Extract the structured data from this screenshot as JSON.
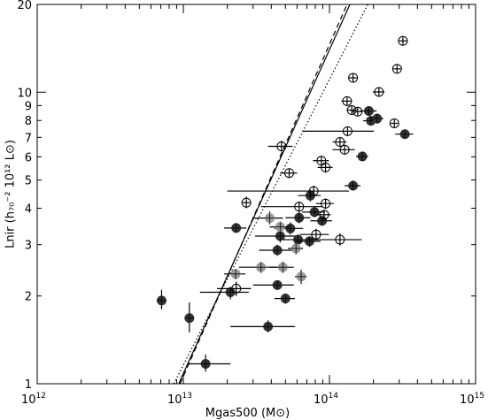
{
  "chart_data": {
    "type": "scatter",
    "x_scale": "log",
    "y_scale": "log",
    "xlim": [
      1000000000000.0,
      1000000000000000.0
    ],
    "ylim": [
      1,
      20
    ],
    "xlabel": "Mgas500 (M⊙)",
    "ylabel": "Lnir (h₇₀⁻² 10¹² L⊙)",
    "x_tick_labels": [
      {
        "value": 1000000000000.0,
        "base": "10",
        "exp": "12"
      },
      {
        "value": 10000000000000.0,
        "base": "10",
        "exp": "13"
      },
      {
        "value": 100000000000000.0,
        "base": "10",
        "exp": "14"
      },
      {
        "value": 1000000000000000.0,
        "base": "10",
        "exp": "15"
      }
    ],
    "y_tick_labels": [
      {
        "value": 1,
        "label": "1"
      },
      {
        "value": 2,
        "label": "2"
      },
      {
        "value": 3,
        "label": "3"
      },
      {
        "value": 4,
        "label": "4"
      },
      {
        "value": 5,
        "label": "5"
      },
      {
        "value": 6,
        "label": "6"
      },
      {
        "value": 7,
        "label": "7"
      },
      {
        "value": 8,
        "label": "8"
      },
      {
        "value": 9,
        "label": "9"
      },
      {
        "value": 10,
        "label": "10"
      },
      {
        "value": 20,
        "label": "20"
      }
    ],
    "grid": false,
    "fits": [
      {
        "style": "solid",
        "points": [
          [
            9300000000000.0,
            1
          ],
          [
            138000000000000.0,
            20
          ]
        ]
      },
      {
        "style": "dashed",
        "points": [
          [
            9500000000000.0,
            1
          ],
          [
            132000000000000.0,
            20
          ]
        ]
      },
      {
        "style": "dotted",
        "points": [
          [
            8600000000000.0,
            1
          ],
          [
            183000000000000.0,
            20
          ]
        ]
      }
    ],
    "series": [
      {
        "marker": "filled-circle",
        "color": "#333333",
        "points": [
          {
            "x": 7100000000000.0,
            "y": 1.93,
            "xerr": [
              6700000000000.0,
              7500000000000.0
            ],
            "yerr": [
              1.8,
              2.1
            ]
          },
          {
            "x": 11000000000000.0,
            "y": 1.68,
            "xerr": [
              10500000000000.0,
              11500000000000.0
            ],
            "yerr": [
              1.5,
              1.9
            ]
          },
          {
            "x": 14200000000000.0,
            "y": 1.17,
            "xerr": [
              11000000000000.0,
              21000000000000.0
            ],
            "yerr": [
              1.1,
              1.26
            ]
          },
          {
            "x": 38000000000000.0,
            "y": 1.57,
            "xerr": [
              21000000000000.0,
              58000000000000.0
            ],
            "yerr": [
              1.5,
              1.65
            ]
          },
          {
            "x": 21000000000000.0,
            "y": 2.06,
            "xerr": [
              13000000000000.0,
              28000000000000.0
            ],
            "yerr": [
              1.95,
              2.15
            ]
          },
          {
            "x": 44000000000000.0,
            "y": 2.18,
            "xerr": [
              30000000000000.0,
              57000000000000.0
            ],
            "yerr": [
              2.1,
              2.26
            ]
          },
          {
            "x": 50000000000000.0,
            "y": 1.96,
            "xerr": [
              42000000000000.0,
              58000000000000.0
            ],
            "yerr": [
              1.88,
              2.04
            ]
          },
          {
            "x": 44000000000000.0,
            "y": 2.87,
            "xerr": [
              33000000000000.0,
              60000000000000.0
            ],
            "yerr": [
              2.75,
              3.0
            ]
          },
          {
            "x": 46000000000000.0,
            "y": 3.21,
            "xerr": [
              31000000000000.0,
              62000000000000.0
            ],
            "yerr": [
              3.05,
              3.38
            ]
          },
          {
            "x": 61000000000000.0,
            "y": 3.12,
            "xerr": [
              48000000000000.0,
              74000000000000.0
            ],
            "yerr": [
              3.0,
              3.25
            ]
          },
          {
            "x": 73000000000000.0,
            "y": 3.08,
            "xerr": [
              59000000000000.0,
              87000000000000.0
            ],
            "yerr": [
              2.95,
              3.2
            ]
          },
          {
            "x": 54000000000000.0,
            "y": 3.41,
            "xerr": [
              42000000000000.0,
              66000000000000.0
            ],
            "yerr": [
              3.25,
              3.58
            ]
          },
          {
            "x": 23000000000000.0,
            "y": 3.42,
            "xerr": [
              19000000000000.0,
              27000000000000.0
            ],
            "yerr": [
              3.3,
              3.56
            ]
          },
          {
            "x": 62000000000000.0,
            "y": 3.71,
            "xerr": [
              50000000000000.0,
              74000000000000.0
            ],
            "yerr": [
              3.55,
              3.88
            ]
          },
          {
            "x": 79000000000000.0,
            "y": 3.88,
            "xerr": [
              65000000000000.0,
              93000000000000.0
            ],
            "yerr": [
              3.72,
              4.05
            ]
          },
          {
            "x": 89000000000000.0,
            "y": 3.62,
            "xerr": [
              74000000000000.0,
              104000000000000.0
            ],
            "yerr": [
              3.48,
              3.76
            ]
          },
          {
            "x": 74000000000000.0,
            "y": 4.42,
            "xerr": [
              61000000000000.0,
              87000000000000.0
            ],
            "yerr": [
              4.22,
              4.62
            ]
          },
          {
            "x": 145000000000000.0,
            "y": 4.78,
            "xerr": [
              127000000000000.0,
              163000000000000.0
            ],
            "yerr": [
              4.6,
              4.98
            ]
          },
          {
            "x": 168000000000000.0,
            "y": 6.02,
            "xerr": [
              152000000000000.0,
              184000000000000.0
            ],
            "yerr": [
              5.8,
              6.25
            ]
          },
          {
            "x": 192000000000000.0,
            "y": 7.98,
            "xerr": [
              170000000000000.0,
              214000000000000.0
            ],
            "yerr": [
              7.7,
              8.28
            ]
          },
          {
            "x": 212000000000000.0,
            "y": 8.12,
            "xerr": [
              190000000000000.0,
              234000000000000.0
            ],
            "yerr": [
              7.8,
              8.45
            ]
          },
          {
            "x": 186000000000000.0,
            "y": 8.62,
            "xerr": [
              162000000000000.0,
              210000000000000.0
            ],
            "yerr": [
              8.3,
              8.95
            ]
          },
          {
            "x": 328000000000000.0,
            "y": 7.18,
            "xerr": [
              282000000000000.0,
              374000000000000.0
            ],
            "yerr": [
              6.95,
              7.42
            ]
          }
        ]
      },
      {
        "marker": "gray-circle",
        "color": "#9a9a9a",
        "points": [
          {
            "x": 22800000000000.0,
            "y": 2.38,
            "xerr": [
              19000000000000.0,
              26600000000000.0
            ],
            "yerr": [
              2.28,
              2.48
            ]
          },
          {
            "x": 34000000000000.0,
            "y": 2.51,
            "xerr": [
              24000000000000.0,
              44000000000000.0
            ],
            "yerr": [
              2.4,
              2.62
            ]
          },
          {
            "x": 48000000000000.0,
            "y": 2.51,
            "xerr": [
              39000000000000.0,
              57000000000000.0
            ],
            "yerr": [
              2.4,
              2.62
            ]
          },
          {
            "x": 64000000000000.0,
            "y": 2.33,
            "xerr": [
              58000000000000.0,
              70000000000000.0
            ],
            "yerr": [
              2.2,
              2.46
            ]
          },
          {
            "x": 59000000000000.0,
            "y": 2.91,
            "xerr": [
              52000000000000.0,
              66000000000000.0
            ],
            "yerr": [
              2.78,
              3.05
            ]
          },
          {
            "x": 39000000000000.0,
            "y": 3.7,
            "xerr": [
              30000000000000.0,
              48000000000000.0
            ],
            "yerr": [
              3.52,
              3.9
            ]
          },
          {
            "x": 46000000000000.0,
            "y": 3.45,
            "xerr": [
              39000000000000.0,
              53000000000000.0
            ],
            "yerr": [
              3.3,
              3.6
            ]
          }
        ]
      },
      {
        "marker": "open-circle",
        "color": "#333333",
        "points": [
          {
            "x": 23000000000000.0,
            "y": 2.12,
            "xerr": [
              17000000000000.0,
              29000000000000.0
            ],
            "yerr": [
              2.0,
              2.24
            ]
          },
          {
            "x": 27000000000000.0,
            "y": 4.18,
            "xerr": [
              25000000000000.0,
              29000000000000.0
            ],
            "yerr": [
              4.0,
              4.38
            ]
          },
          {
            "x": 47000000000000.0,
            "y": 6.52,
            "xerr": [
              38000000000000.0,
              56000000000000.0
            ],
            "yerr": [
              6.25,
              6.82
            ]
          },
          {
            "x": 53000000000000.0,
            "y": 5.28,
            "xerr": [
              46000000000000.0,
              60000000000000.0
            ],
            "yerr": [
              5.08,
              5.48
            ]
          },
          {
            "x": 78000000000000.0,
            "y": 4.58,
            "xerr": [
              20000000000000.0,
              136000000000000.0
            ],
            "yerr": [
              4.4,
              4.78
            ]
          },
          {
            "x": 62000000000000.0,
            "y": 4.05,
            "xerr": [
              34000000000000.0,
              90000000000000.0
            ],
            "yerr": [
              3.88,
              4.22
            ]
          },
          {
            "x": 81000000000000.0,
            "y": 3.25,
            "xerr": [
              63000000000000.0,
              99000000000000.0
            ],
            "yerr": [
              3.1,
              3.4
            ]
          },
          {
            "x": 92000000000000.0,
            "y": 3.8,
            "xerr": [
              82000000000000.0,
              102000000000000.0
            ],
            "yerr": [
              3.65,
              3.95
            ]
          },
          {
            "x": 94000000000000.0,
            "y": 4.15,
            "xerr": [
              81000000000000.0,
              107000000000000.0
            ],
            "yerr": [
              3.98,
              4.32
            ]
          },
          {
            "x": 88000000000000.0,
            "y": 5.82,
            "xerr": [
              77000000000000.0,
              99000000000000.0
            ],
            "yerr": [
              5.6,
              6.05
            ]
          },
          {
            "x": 94000000000000.0,
            "y": 5.52,
            "xerr": [
              83000000000000.0,
              105000000000000.0
            ],
            "yerr": [
              5.3,
              5.75
            ]
          },
          {
            "x": 118000000000000.0,
            "y": 3.12,
            "xerr": [
              70000000000000.0,
              166000000000000.0
            ],
            "yerr": [
              2.98,
              3.28
            ]
          },
          {
            "x": 118000000000000.0,
            "y": 6.75,
            "xerr": [
              105000000000000.0,
              131000000000000.0
            ],
            "yerr": [
              6.5,
              7.0
            ]
          },
          {
            "x": 127000000000000.0,
            "y": 6.35,
            "xerr": [
              105000000000000.0,
              149000000000000.0
            ],
            "yerr": [
              6.1,
              6.6
            ]
          },
          {
            "x": 133000000000000.0,
            "y": 7.35,
            "xerr": [
              65000000000000.0,
              201000000000000.0
            ],
            "yerr": [
              7.1,
              7.6
            ]
          },
          {
            "x": 132000000000000.0,
            "y": 9.32,
            "xerr": [
              121000000000000.0,
              143000000000000.0
            ],
            "yerr": [
              9.0,
              9.65
            ]
          },
          {
            "x": 145000000000000.0,
            "y": 11.2,
            "xerr": [
              135000000000000.0,
              155000000000000.0
            ],
            "yerr": [
              10.8,
              11.6
            ]
          },
          {
            "x": 142000000000000.0,
            "y": 8.68,
            "xerr": [
              131000000000000.0,
              153000000000000.0
            ],
            "yerr": [
              8.38,
              8.98
            ]
          },
          {
            "x": 156000000000000.0,
            "y": 8.58,
            "xerr": [
              144000000000000.0,
              168000000000000.0
            ],
            "yerr": [
              8.28,
              8.88
            ]
          },
          {
            "x": 218000000000000.0,
            "y": 10.02,
            "xerr": [
              198000000000000.0,
              238000000000000.0
            ],
            "yerr": [
              9.7,
              10.35
            ]
          },
          {
            "x": 278000000000000.0,
            "y": 7.82,
            "xerr": [
              262000000000000.0,
              294000000000000.0
            ],
            "yerr": [
              7.58,
              8.06
            ]
          },
          {
            "x": 290000000000000.0,
            "y": 12.02,
            "xerr": [
              272000000000000.0,
              308000000000000.0
            ],
            "yerr": [
              11.62,
              12.42
            ]
          },
          {
            "x": 318000000000000.0,
            "y": 15.0,
            "xerr": [
              295000000000000.0,
              341000000000000.0
            ],
            "yerr": [
              14.55,
              15.45
            ]
          }
        ]
      }
    ]
  }
}
